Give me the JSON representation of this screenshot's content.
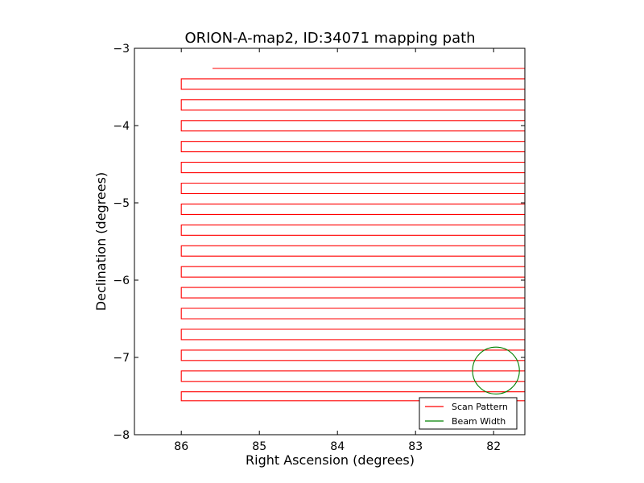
{
  "chart_data": {
    "type": "line",
    "title": "ORION-A-map2, ID:34071 mapping path",
    "xlabel": "Right Ascension (degrees)",
    "ylabel": "Declination (degrees)",
    "xlim": [
      86.6,
      81.6
    ],
    "ylim": [
      -8,
      -3
    ],
    "x_ticks": [
      86,
      85,
      84,
      83,
      82
    ],
    "x_tick_labels": [
      "86",
      "85",
      "84",
      "83",
      "82"
    ],
    "y_ticks": [
      -3,
      -4,
      -5,
      -6,
      -7,
      -8
    ],
    "y_tick_labels": [
      "−3",
      "−4",
      "−5",
      "−6",
      "−7",
      "−8"
    ],
    "grid": false,
    "legend_position": "lower-right",
    "series": [
      {
        "name": "Scan Pattern",
        "color": "#ff0000",
        "path": {
          "ra_east": 86.0,
          "ra_west": 81.6,
          "dec_start": -3.26,
          "dec_end": -7.56,
          "row_spacing": 0.135,
          "ra_first_row_start": 85.6,
          "sweeps": 33
        }
      },
      {
        "name": "Beam Width",
        "color": "#008000",
        "circle": {
          "ra_center": 81.97,
          "dec_center": -7.17,
          "radius_deg": 0.3
        }
      }
    ]
  }
}
